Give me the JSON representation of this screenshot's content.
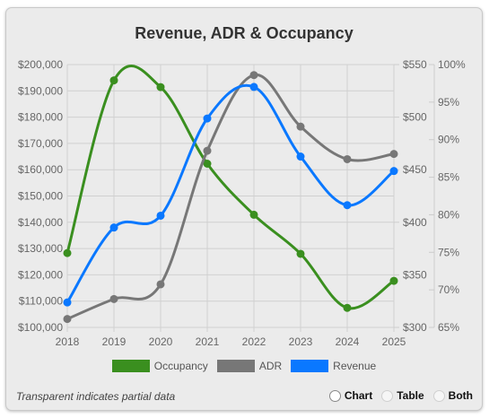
{
  "chart_data": {
    "type": "line",
    "title": "Revenue, ADR & Occupancy",
    "categories": [
      "2018",
      "2019",
      "2020",
      "2021",
      "2022",
      "2023",
      "2024",
      "2025"
    ],
    "axes": {
      "revenue": {
        "side": "left",
        "range": [
          100000,
          200000
        ],
        "ticks": [
          "$100,000",
          "$110,000",
          "$120,000",
          "$130,000",
          "$140,000",
          "$150,000",
          "$160,000",
          "$170,000",
          "$180,000",
          "$190,000",
          "$200,000"
        ]
      },
      "adr": {
        "side": "right-inner",
        "range": [
          300,
          550
        ],
        "ticks": [
          "$300",
          "$350",
          "$400",
          "$450",
          "$500",
          "$550"
        ]
      },
      "occupancy": {
        "side": "right-outer",
        "range": [
          65,
          100
        ],
        "ticks": [
          "65%",
          "70%",
          "75%",
          "80%",
          "85%",
          "90%",
          "95%",
          "100%"
        ]
      }
    },
    "series": [
      {
        "name": "Occupancy",
        "axis": "occupancy",
        "color": "#3a8f1f",
        "values": [
          74.9,
          97.9,
          97.0,
          86.8,
          80.0,
          74.8,
          67.6,
          71.2
        ]
      },
      {
        "name": "ADR",
        "axis": "adr",
        "color": "#777777",
        "values": [
          308,
          327,
          341,
          468,
          540,
          491,
          460,
          465
        ]
      },
      {
        "name": "Revenue",
        "axis": "revenue",
        "color": "#0a78ff",
        "values": [
          109500,
          138000,
          142500,
          179500,
          191500,
          165000,
          146500,
          159500
        ]
      }
    ],
    "grid": true,
    "legend": "bottom"
  },
  "footer": {
    "note": "Transparent indicates partial data",
    "options": [
      "Chart",
      "Table",
      "Both"
    ]
  }
}
